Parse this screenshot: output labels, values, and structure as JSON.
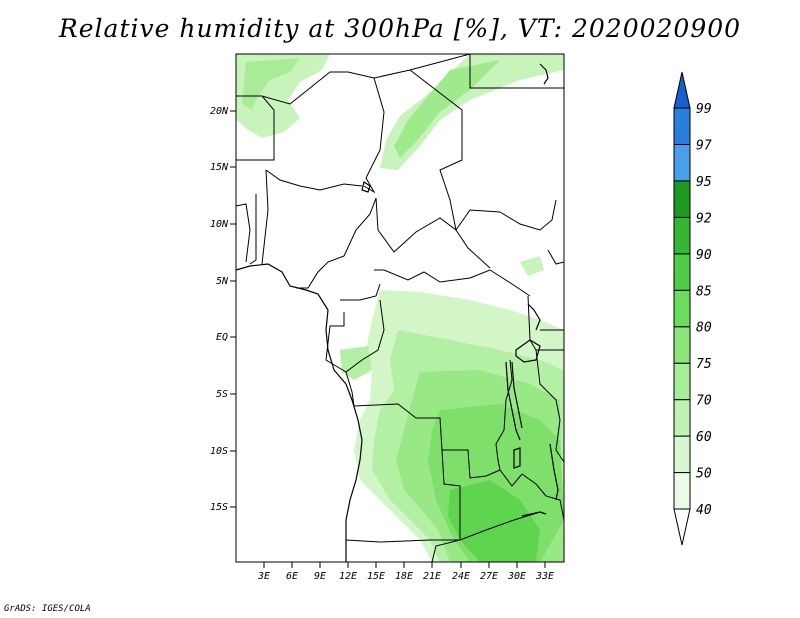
{
  "title": "Relative humidity at 300hPa [%], VT: 2020020900",
  "credit": "GrADS: IGES/COLA",
  "map": {
    "region": "Central Africa",
    "lon_range": [
      0,
      35
    ],
    "lat_range": [
      -20,
      24.5
    ],
    "lat_ticks": [
      "20N",
      "15N",
      "10N",
      "5N",
      "EQ",
      "5S",
      "10S",
      "15S"
    ],
    "lon_ticks": [
      "3E",
      "6E",
      "9E",
      "12E",
      "15E",
      "18E",
      "21E",
      "24E",
      "27E",
      "30E",
      "33E"
    ]
  },
  "colorbar": {
    "levels": [
      "40",
      "50",
      "60",
      "70",
      "75",
      "80",
      "85",
      "90",
      "92",
      "95",
      "97",
      "99"
    ],
    "colors": [
      "#ffffff",
      "#eafbe6",
      "#d6f7cf",
      "#bff3b4",
      "#a5ee97",
      "#8ae67b",
      "#6cdc5f",
      "#4fcd48",
      "#36b633",
      "#1d9b1f",
      "#4aa0e8",
      "#2a7fdc",
      "#1560cc"
    ]
  }
}
